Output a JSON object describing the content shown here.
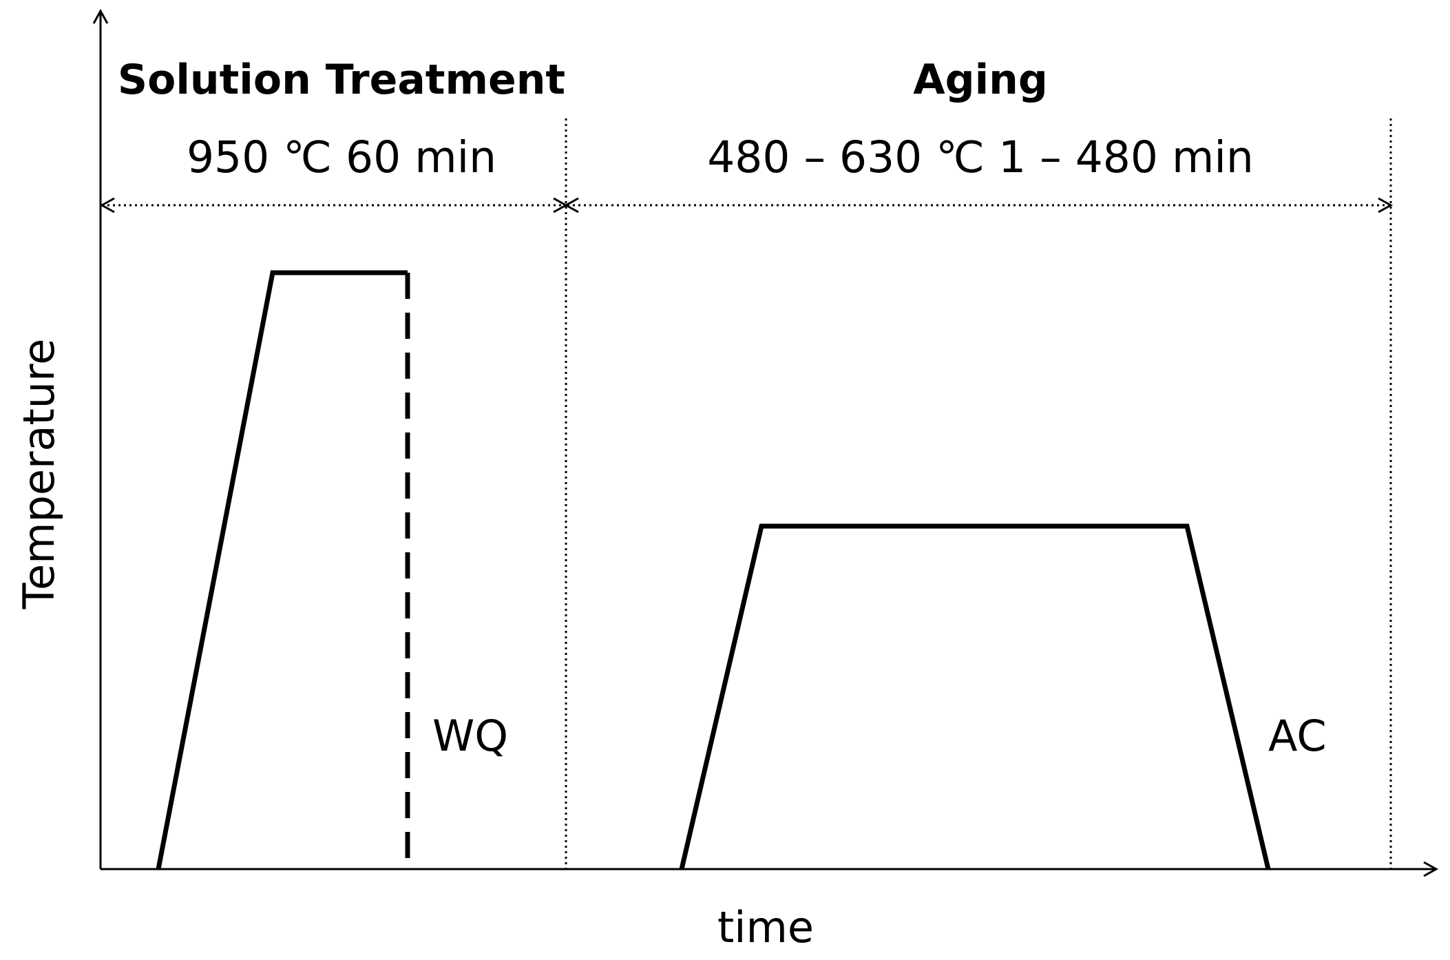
{
  "axes": {
    "ylabel": "Temperature",
    "xlabel": "time"
  },
  "stages": [
    {
      "title": "Solution Treatment",
      "conditions": "950 ℃ 60 min",
      "cooling": "WQ"
    },
    {
      "title": "Aging",
      "conditions": "480 – 630 ℃ 1 – 480 min",
      "cooling": "AC"
    }
  ],
  "colors": {
    "line": "#000000",
    "background": "#ffffff"
  }
}
